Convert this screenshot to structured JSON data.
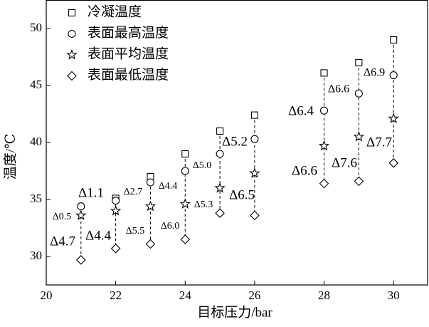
{
  "chart_data": {
    "type": "scatter",
    "x_label": "目标压力/bar",
    "y_label": "温度/℃",
    "x": [
      21,
      22,
      23,
      24,
      25,
      26,
      28,
      29,
      30
    ],
    "xlim": [
      20,
      31
    ],
    "xticks": [
      20,
      22,
      24,
      26,
      28,
      30
    ],
    "ylim": [
      27.5,
      52.5
    ],
    "yticks": [
      30,
      35,
      40,
      45,
      50
    ],
    "series": [
      {
        "name": "冷凝温度",
        "marker": "square",
        "color": "#000000",
        "values": [
          null,
          35.1,
          37.0,
          39.0,
          41.0,
          42.4,
          46.1,
          47.0,
          49.0
        ]
      },
      {
        "name": "表面最高温度",
        "marker": "circle",
        "color": "#000000",
        "values": [
          34.4,
          34.9,
          36.5,
          37.5,
          39.0,
          40.3,
          42.8,
          44.3,
          45.9
        ]
      },
      {
        "name": "表面平均温度",
        "marker": "star",
        "color": "#000000",
        "values": [
          33.6,
          34.0,
          34.4,
          34.6,
          36.0,
          37.3,
          39.7,
          40.5,
          42.1
        ]
      },
      {
        "name": "表面最低温度",
        "marker": "diamond",
        "color": "#000000",
        "values": [
          29.7,
          30.7,
          31.1,
          31.5,
          33.8,
          33.6,
          36.4,
          36.6,
          38.2
        ]
      }
    ],
    "annotations": [
      "Δ1.1",
      "Δ0.5",
      "Δ4.7",
      "Δ4.4",
      "Δ2.7",
      "Δ5.5",
      "Δ4.4",
      "Δ6.0",
      "Δ5.0",
      "Δ5.3",
      "Δ5.2",
      "Δ6.5",
      "Δ6.4",
      "Δ6.6",
      "Δ6.9",
      "Δ6.6",
      "Δ7.6",
      "Δ7.7"
    ]
  }
}
